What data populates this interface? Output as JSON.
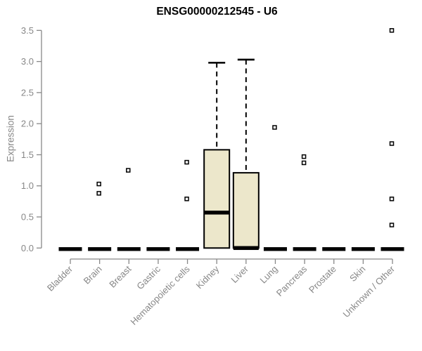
{
  "chart_data": {
    "type": "boxplot",
    "title": "ENSG00000212545 - U6",
    "xlabel": "",
    "ylabel": "Expression",
    "ylim": [
      0,
      3.5
    ],
    "yticks": [
      0.0,
      0.5,
      1.0,
      1.5,
      2.0,
      2.5,
      3.0,
      3.5
    ],
    "grid": false,
    "legend": "none",
    "categories": [
      "Bladder",
      "Brain",
      "Breast",
      "Gastric",
      "Hematopoietic cells",
      "Kidney",
      "Liver",
      "Lung",
      "Pancreas",
      "Prostate",
      "Skin",
      "Unknown / Other"
    ],
    "boxes": [
      {
        "category": "Bladder",
        "q1": 0,
        "median": 0,
        "q3": 0,
        "whisker_low": 0,
        "whisker_high": 0,
        "outliers": []
      },
      {
        "category": "Brain",
        "q1": 0,
        "median": 0,
        "q3": 0,
        "whisker_low": 0,
        "whisker_high": 0,
        "outliers": [
          0.88,
          1.03
        ]
      },
      {
        "category": "Breast",
        "q1": 0,
        "median": 0,
        "q3": 0,
        "whisker_low": 0,
        "whisker_high": 0,
        "outliers": [
          1.25
        ]
      },
      {
        "category": "Gastric",
        "q1": 0,
        "median": 0,
        "q3": 0,
        "whisker_low": 0,
        "whisker_high": 0,
        "outliers": []
      },
      {
        "category": "Hematopoietic cells",
        "q1": 0,
        "median": 0,
        "q3": 0,
        "whisker_low": 0,
        "whisker_high": 0,
        "outliers": [
          0.79,
          1.38
        ]
      },
      {
        "category": "Kidney",
        "q1": 0,
        "median": 0.57,
        "q3": 1.58,
        "whisker_low": 0,
        "whisker_high": 2.98,
        "outliers": []
      },
      {
        "category": "Liver",
        "q1": 0,
        "median": 0,
        "q3": 1.21,
        "whisker_low": 0,
        "whisker_high": 3.03,
        "outliers": []
      },
      {
        "category": "Lung",
        "q1": 0,
        "median": 0,
        "q3": 0,
        "whisker_low": 0,
        "whisker_high": 0,
        "outliers": [
          1.94
        ]
      },
      {
        "category": "Pancreas",
        "q1": 0,
        "median": 0,
        "q3": 0,
        "whisker_low": 0,
        "whisker_high": 0,
        "outliers": [
          1.37,
          1.47
        ]
      },
      {
        "category": "Prostate",
        "q1": 0,
        "median": 0,
        "q3": 0,
        "whisker_low": 0,
        "whisker_high": 0,
        "outliers": []
      },
      {
        "category": "Skin",
        "q1": 0,
        "median": 0,
        "q3": 0,
        "whisker_low": 0,
        "whisker_high": 0,
        "outliers": []
      },
      {
        "category": "Unknown / Other",
        "q1": 0,
        "median": 0,
        "q3": 0,
        "whisker_low": 0,
        "whisker_high": 0,
        "outliers": [
          0.37,
          0.79,
          1.68,
          3.5
        ]
      }
    ],
    "style": {
      "box_fill": "#ECE7CB",
      "box_stroke": "#000000",
      "median_color": "#000000",
      "whisker_color": "#000000",
      "outlier_fill": "#ffffff",
      "outlier_stroke": "#000000",
      "axis_color": "#888888",
      "label_color": "#878787",
      "title_color": "#000000",
      "background": "#ffffff"
    }
  }
}
